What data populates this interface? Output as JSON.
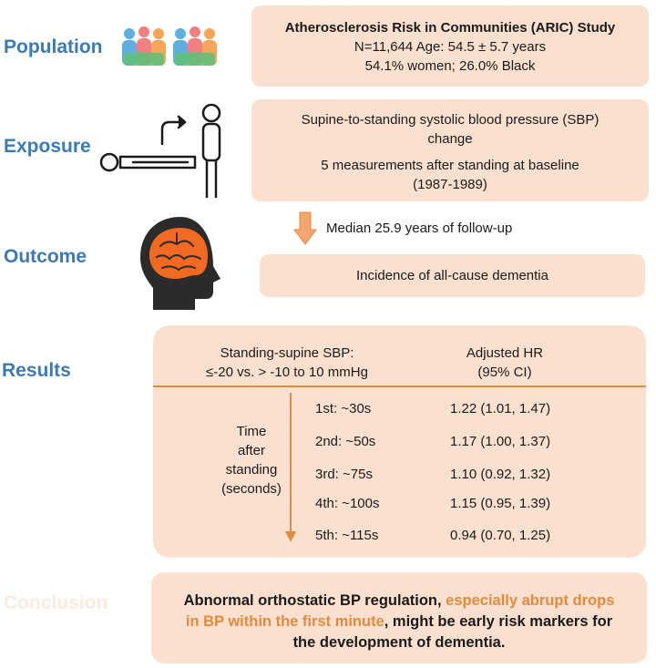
{
  "sections": {
    "population": "Population",
    "exposure": "Exposure",
    "outcome": "Outcome",
    "results": "Results",
    "conclusion": "Conclusion"
  },
  "population_box": {
    "title": "Atherosclerosis Risk in Communities (ARIC) Study",
    "line1": "N=11,644   Age: 54.5 ±  5.7 years",
    "line2": "54.1% women;  26.0% Black"
  },
  "exposure_box": {
    "line1": "Supine-to-standing systolic blood pressure (SBP)",
    "line2": "change",
    "line3": "5 measurements after standing at baseline",
    "line4": "(1987-1989)"
  },
  "followup": "Median 25.9 years of follow-up",
  "outcome_box": "Incidence of all-cause dementia",
  "results": {
    "header_left_1": "Standing-supine SBP:",
    "header_left_2": "≤-20  vs. > -10 to 10 mmHg",
    "header_right_1": "Adjusted HR",
    "header_right_2": "(95% CI)",
    "axis_label": [
      "Time",
      "after",
      "standing",
      "(seconds)"
    ],
    "rows": [
      {
        "label": "1st: ~30s",
        "hr": "1.22 (1.01, 1.47)"
      },
      {
        "label": "2nd: ~50s",
        "hr": "1.17 (1.00, 1.37)"
      },
      {
        "label": "3rd: ~75s",
        "hr": "1.10 (0.92, 1.32)"
      },
      {
        "label": "4th: ~100s",
        "hr": "1.15 (0.95, 1.39)"
      },
      {
        "label": "5th: ~115s",
        "hr": "0.94 (0.70, 1.25)"
      }
    ]
  },
  "conclusion_box": {
    "part1": "Abnormal orthostatic BP regulation, ",
    "highlight": "especially abrupt drops in BP within the first minute",
    "part2": ", might be early risk markers for the development of dementia."
  },
  "colors": {
    "label_blue": "#3b7bb3",
    "box_fill": "#fbe0cf",
    "accent_orange": "#e38a3d"
  },
  "icons": [
    "people-icon",
    "lying-to-standing-icon",
    "brain-head-icon",
    "down-arrow-icon",
    "timeline-arrow-icon"
  ]
}
